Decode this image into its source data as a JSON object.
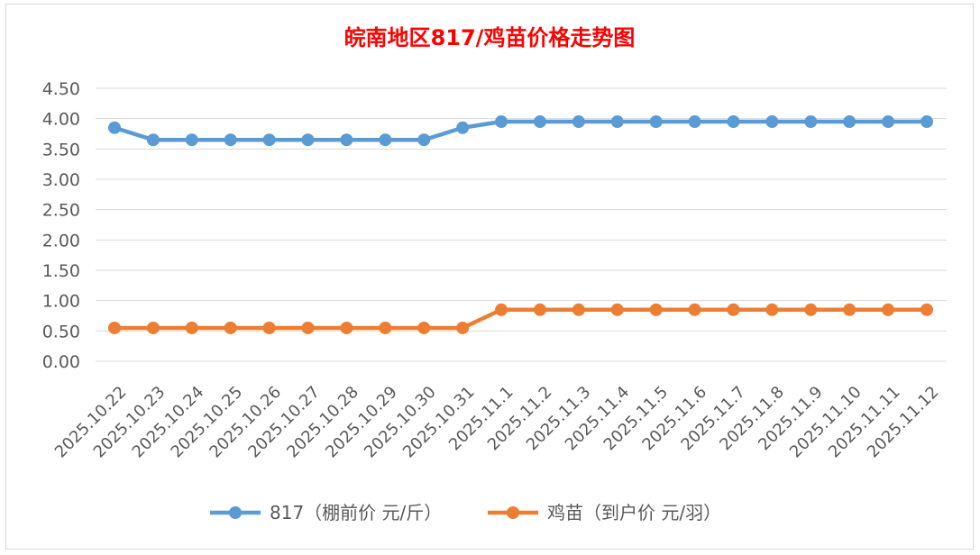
{
  "chart_data": {
    "type": "line",
    "title": "皖南地区817/鸡苗价格走势图",
    "title_color": "#ff0000",
    "categories": [
      "2025.10.22",
      "2025.10.23",
      "2025.10.24",
      "2025.10.25",
      "2025.10.26",
      "2025.10.27",
      "2025.10.28",
      "2025.10.29",
      "2025.10.30",
      "2025.10.31",
      "2025.11.1",
      "2025.11.2",
      "2025.11.3",
      "2025.11.4",
      "2025.11.5",
      "2025.11.6",
      "2025.11.7",
      "2025.11.8",
      "2025.11.9",
      "2025.11.10",
      "2025.11.11",
      "2025.11.12"
    ],
    "series": [
      {
        "name": "817（棚前价 元/斤）",
        "color": "#5b9bd5",
        "values": [
          3.85,
          3.65,
          3.65,
          3.65,
          3.65,
          3.65,
          3.65,
          3.65,
          3.65,
          3.85,
          3.95,
          3.95,
          3.95,
          3.95,
          3.95,
          3.95,
          3.95,
          3.95,
          3.95,
          3.95,
          3.95,
          3.95
        ]
      },
      {
        "name": "鸡苗（到户价 元/羽）",
        "color": "#ed7d31",
        "values": [
          0.55,
          0.55,
          0.55,
          0.55,
          0.55,
          0.55,
          0.55,
          0.55,
          0.55,
          0.55,
          0.85,
          0.85,
          0.85,
          0.85,
          0.85,
          0.85,
          0.85,
          0.85,
          0.85,
          0.85,
          0.85,
          0.85
        ]
      }
    ],
    "y_ticks": [
      "0.00",
      "0.50",
      "1.00",
      "1.50",
      "2.00",
      "2.50",
      "3.00",
      "3.50",
      "4.00",
      "4.50"
    ],
    "ylim": [
      0,
      4.5
    ],
    "grid": true,
    "legend": "bottom",
    "title_parts": [
      {
        "text": "皖南地区",
        "bold": false
      },
      {
        "text": "817/",
        "bold": true
      },
      {
        "text": "鸡苗价格走势图",
        "bold": false
      }
    ]
  }
}
